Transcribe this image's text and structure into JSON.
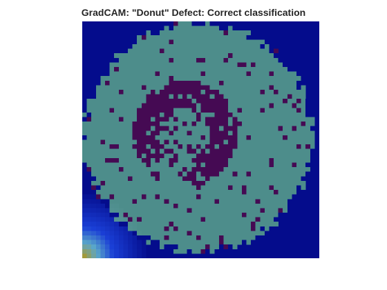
{
  "figure": {
    "title": "GradCAM: \"Donut\" Defect: Correct classification"
  },
  "image": {
    "description_id": "wafer-defect-map-gradcam-overlay",
    "grid_size": 52,
    "colors": {
      "outside_wafer": "#040c8c",
      "wafer_surface": "#4d8d8b",
      "defect_die": "#450a53",
      "heat_low": "#1a3fd6",
      "heat_high": "#a29a3a"
    },
    "heat_peak": {
      "col": 0,
      "row": 51,
      "level": 1.0
    },
    "donut_ring": {
      "center_col": 22,
      "center_row": 24,
      "inner_radius": 5.5,
      "outer_radius": 11.5
    }
  }
}
